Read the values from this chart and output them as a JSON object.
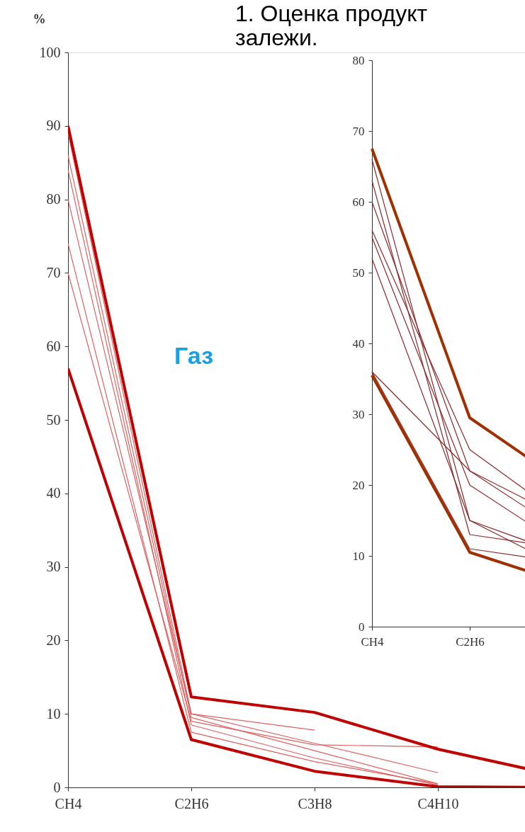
{
  "chart_data": [
    {
      "type": "line",
      "ylabel": "%",
      "annotations": [
        "1. Оценка продукт",
        "залежи.",
        "Газ"
      ],
      "categories": [
        "CH4",
        "C2H6",
        "C3H8",
        "C4H10",
        null
      ],
      "ylim": [
        0,
        100
      ],
      "yticks": [
        0,
        10,
        20,
        30,
        40,
        50,
        60,
        70,
        80,
        90,
        100
      ],
      "grid": false,
      "legend": false,
      "series": [
        {
          "color": "#e06060",
          "values": [
            89,
            10,
            6,
            2,
            null
          ]
        },
        {
          "color": "#e06060",
          "values": [
            86,
            9.5,
            5,
            0.5,
            null
          ]
        },
        {
          "color": "#e06060",
          "values": [
            84,
            8.5,
            4,
            0.3,
            null
          ]
        },
        {
          "color": "#e06060",
          "values": [
            80,
            10,
            7.8,
            null,
            null
          ]
        },
        {
          "color": "#e06060",
          "values": [
            74,
            7.5,
            3.5,
            0.5,
            null
          ]
        },
        {
          "color": "#e06060",
          "values": [
            70,
            9,
            5.8,
            5.5,
            null
          ]
        },
        {
          "color": "#c00000",
          "values": [
            90,
            12.3,
            10.2,
            5.2,
            1.5
          ]
        },
        {
          "color": "#c00000",
          "values": [
            57,
            6.5,
            2.2,
            0.1,
            0
          ]
        }
      ]
    },
    {
      "type": "line",
      "categories": [
        "CH4",
        "C2H6",
        null
      ],
      "ylim": [
        0,
        80
      ],
      "yticks": [
        0,
        10,
        20,
        30,
        40,
        50,
        60,
        70,
        80
      ],
      "grid": false,
      "legend": false,
      "series": [
        {
          "color": "#8b2a2a",
          "values": [
            66,
            15,
            8
          ]
        },
        {
          "color": "#8b2a2a",
          "values": [
            63,
            13,
            11
          ]
        },
        {
          "color": "#8b2a2a",
          "values": [
            60,
            22,
            13
          ]
        },
        {
          "color": "#8b2a2a",
          "values": [
            56,
            25,
            15
          ]
        },
        {
          "color": "#8b2a2a",
          "values": [
            55,
            20,
            11
          ]
        },
        {
          "color": "#8b2a2a",
          "values": [
            52,
            15,
            10
          ]
        },
        {
          "color": "#8b2a2a",
          "values": [
            36,
            22,
            15
          ]
        },
        {
          "color": "#8b2a2a",
          "values": [
            36,
            11,
            9
          ]
        },
        {
          "color": "#a03000",
          "values": [
            67.5,
            29.5,
            20
          ]
        },
        {
          "color": "#a03000",
          "values": [
            35.5,
            10.5,
            6
          ]
        }
      ]
    }
  ]
}
